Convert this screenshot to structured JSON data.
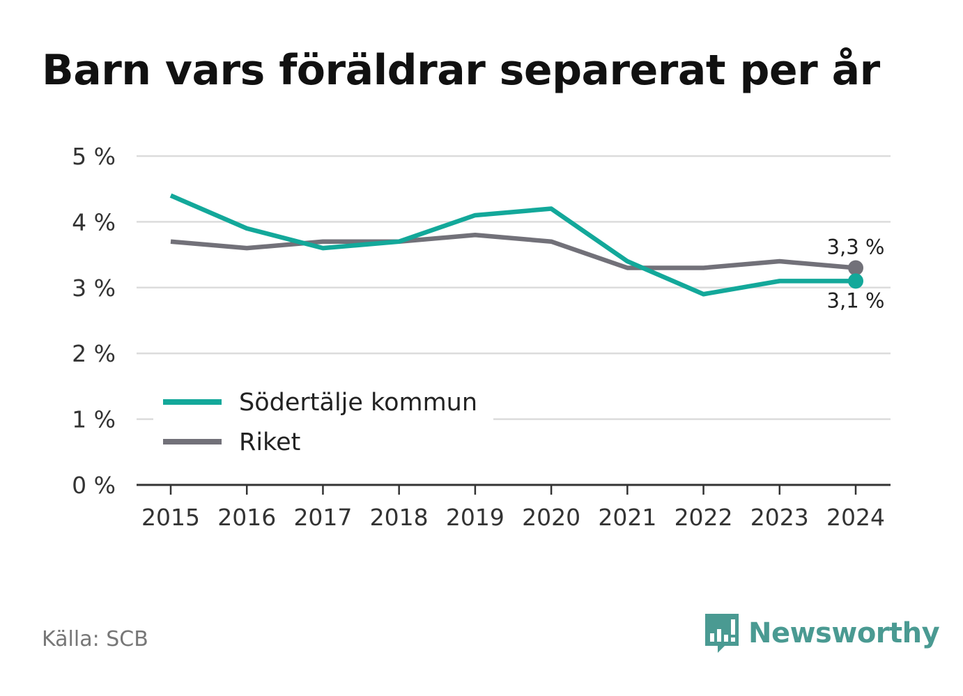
{
  "title": "Barn vars föräldrar separerat per år",
  "source": "Källa: SCB",
  "brand": {
    "name": "Newsworthy",
    "icon": "newsworthy-logo-icon",
    "color": "#4a9a92"
  },
  "chart_data": {
    "type": "line",
    "title": "Barn vars föräldrar separerat per år",
    "xlabel": "",
    "ylabel": "",
    "x": [
      "2015",
      "2016",
      "2017",
      "2018",
      "2019",
      "2020",
      "2021",
      "2022",
      "2023",
      "2024"
    ],
    "ylim": [
      0,
      5
    ],
    "yticks": [
      0,
      1,
      2,
      3,
      4,
      5
    ],
    "ytick_labels": [
      "0 %",
      "1 %",
      "2 %",
      "3 %",
      "4 %",
      "5 %"
    ],
    "grid": true,
    "legend_position": "bottom-left",
    "series": [
      {
        "name": "Södertälje kommun",
        "color": "#13a89a",
        "values": [
          4.4,
          3.9,
          3.6,
          3.7,
          4.1,
          4.2,
          3.4,
          2.9,
          3.1,
          3.1
        ],
        "end_label": "3,1 %"
      },
      {
        "name": "Riket",
        "color": "#727179",
        "values": [
          3.7,
          3.6,
          3.7,
          3.7,
          3.8,
          3.7,
          3.3,
          3.3,
          3.4,
          3.3
        ],
        "end_label": "3,3 %"
      }
    ]
  }
}
